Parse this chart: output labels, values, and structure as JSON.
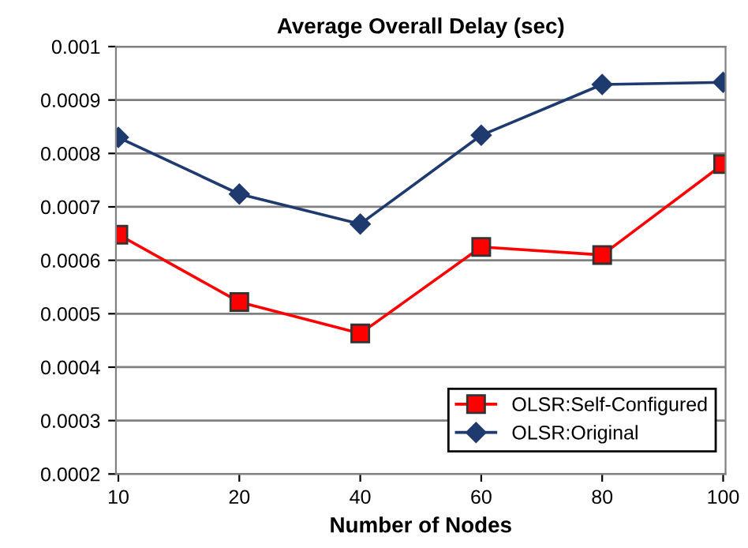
{
  "chart_data": {
    "type": "line",
    "title": "Average Overall Delay (sec)",
    "xlabel": "Number of Nodes",
    "categories": [
      "10",
      "20",
      "40",
      "60",
      "80",
      "100"
    ],
    "series": [
      {
        "name": "OLSR:Self-Configured",
        "color": "#ff0000",
        "marker": "square",
        "values": [
          0.000648,
          0.000522,
          0.000463,
          0.000625,
          0.00061,
          0.00078
        ]
      },
      {
        "name": "OLSR:Original",
        "color": "#1f3a6e",
        "marker": "diamond",
        "values": [
          0.00083,
          0.000724,
          0.000668,
          0.000834,
          0.000929,
          0.000933
        ]
      }
    ],
    "ylim": [
      0.0002,
      0.001
    ],
    "yticks": [
      0.0002,
      0.0003,
      0.0004,
      0.0005,
      0.0006,
      0.0007,
      0.0008,
      0.0009,
      0.001
    ],
    "grid": "y",
    "legend": "bottom right"
  }
}
